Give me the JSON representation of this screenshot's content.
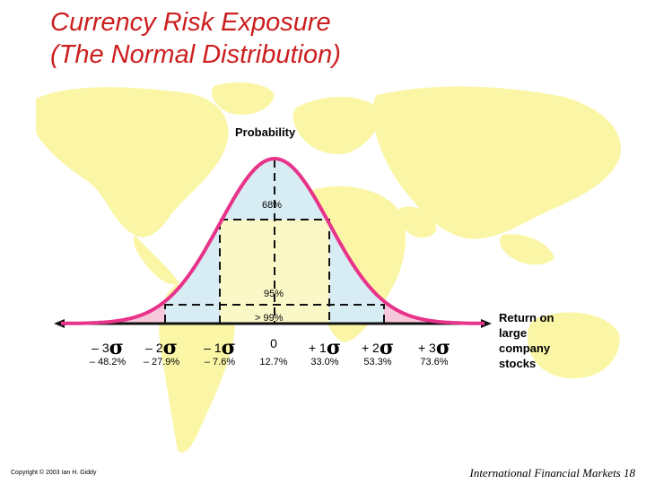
{
  "title_line1": "Currency Risk Exposure",
  "title_line2": "(The Normal Distribution)",
  "y_label": "Probability",
  "x_label": "Return on large company stocks",
  "band_labels": {
    "one_sigma": "68%",
    "two_sigma": "95%",
    "three_sigma": "> 99%"
  },
  "sigma_symbol": "σ",
  "sigma_ticks": [
    {
      "label": "– 3",
      "return": "– 48.2%"
    },
    {
      "label": "– 2",
      "return": "– 27.9%"
    },
    {
      "label": "– 1",
      "return": "– 7.6%"
    },
    {
      "label": "0",
      "return": "12.7%"
    },
    {
      "label": "+ 1",
      "return": "33.0%"
    },
    {
      "label": "+ 2",
      "return": "53.3%"
    },
    {
      "label": "+ 3",
      "return": "73.6%"
    }
  ],
  "copyright": "Copyright © 2003 Ian H. Giddy",
  "footer": "International Financial Markets 18",
  "colors": {
    "title": "#cc1f1f",
    "curve": "#e8338a",
    "inner_fill": "#fbf8c8",
    "mid_fill": "#d8ecf4",
    "tail_fill": "#f7c8dc",
    "map": "#faf6a6"
  }
}
